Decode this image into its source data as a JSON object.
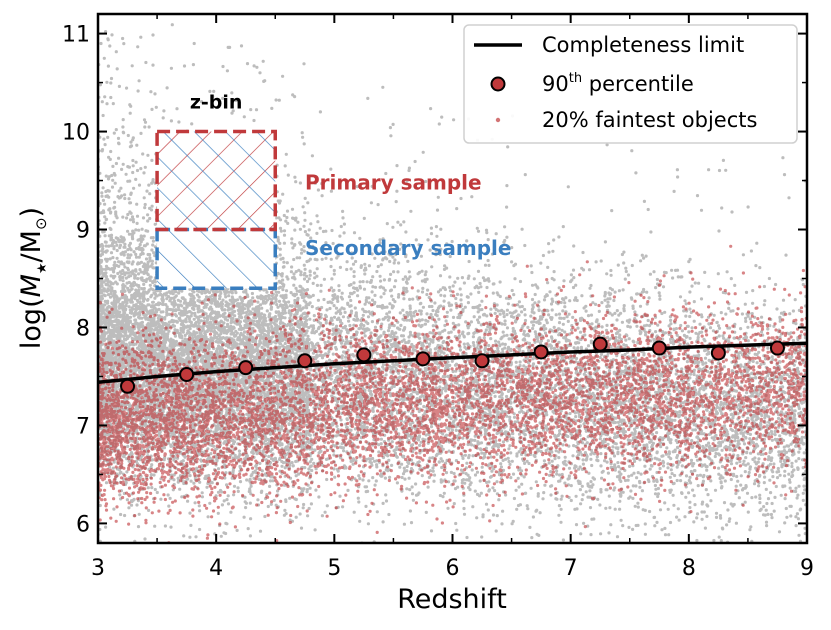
{
  "chart_data": {
    "type": "scatter",
    "title": "",
    "xlabel": "Redshift",
    "ylabel_parts": {
      "prefix": "log(",
      "mstar": "M",
      "mstar_sub": "★",
      "slash": "/M",
      "sun_sub": "⊙",
      "suffix": ")"
    },
    "xlim": [
      3,
      9
    ],
    "ylim": [
      5.8,
      11.2
    ],
    "xticks": [
      3,
      4,
      5,
      6,
      7,
      8,
      9
    ],
    "yticks": [
      6,
      7,
      8,
      9,
      10,
      11
    ],
    "xtick_labels": [
      "3",
      "4",
      "5",
      "6",
      "7",
      "8",
      "9"
    ],
    "ytick_labels": [
      "6",
      "7",
      "8",
      "9",
      "10",
      "11"
    ],
    "grid": false,
    "legend_position": "top-right",
    "legend": {
      "completeness": "Completeness limit",
      "percentile_prefix": "90",
      "percentile_sup": "th",
      "percentile_suffix": " percentile",
      "faintest": "20% faintest objects"
    },
    "completeness_limit": {
      "x": [
        3.0,
        3.5,
        4.0,
        4.5,
        5.0,
        5.5,
        6.0,
        6.5,
        7.0,
        7.5,
        8.0,
        8.5,
        9.0
      ],
      "y": [
        7.44,
        7.5,
        7.55,
        7.59,
        7.63,
        7.66,
        7.69,
        7.72,
        7.75,
        7.77,
        7.8,
        7.82,
        7.84
      ]
    },
    "percentile_90": {
      "x": [
        3.25,
        3.75,
        4.25,
        4.75,
        5.25,
        5.75,
        6.25,
        6.75,
        7.25,
        7.75,
        8.25,
        8.75
      ],
      "y": [
        7.4,
        7.52,
        7.59,
        7.66,
        7.72,
        7.68,
        7.66,
        7.75,
        7.83,
        7.79,
        7.74,
        7.79
      ]
    },
    "annotations": {
      "zbin_label": "z-bin",
      "primary_label": "Primary sample",
      "secondary_label": "Secondary sample",
      "zbin_x": [
        3.5,
        4.5
      ],
      "primary_y": [
        9.0,
        10.0
      ],
      "secondary_y": [
        8.4,
        9.0
      ]
    },
    "colors": {
      "all_points": "#bdbdbd",
      "faintest": "#c0393b",
      "percentile_fill": "#c0393b",
      "line": "#000000",
      "primary": "#c0393b",
      "secondary": "#3a7ebf"
    }
  }
}
